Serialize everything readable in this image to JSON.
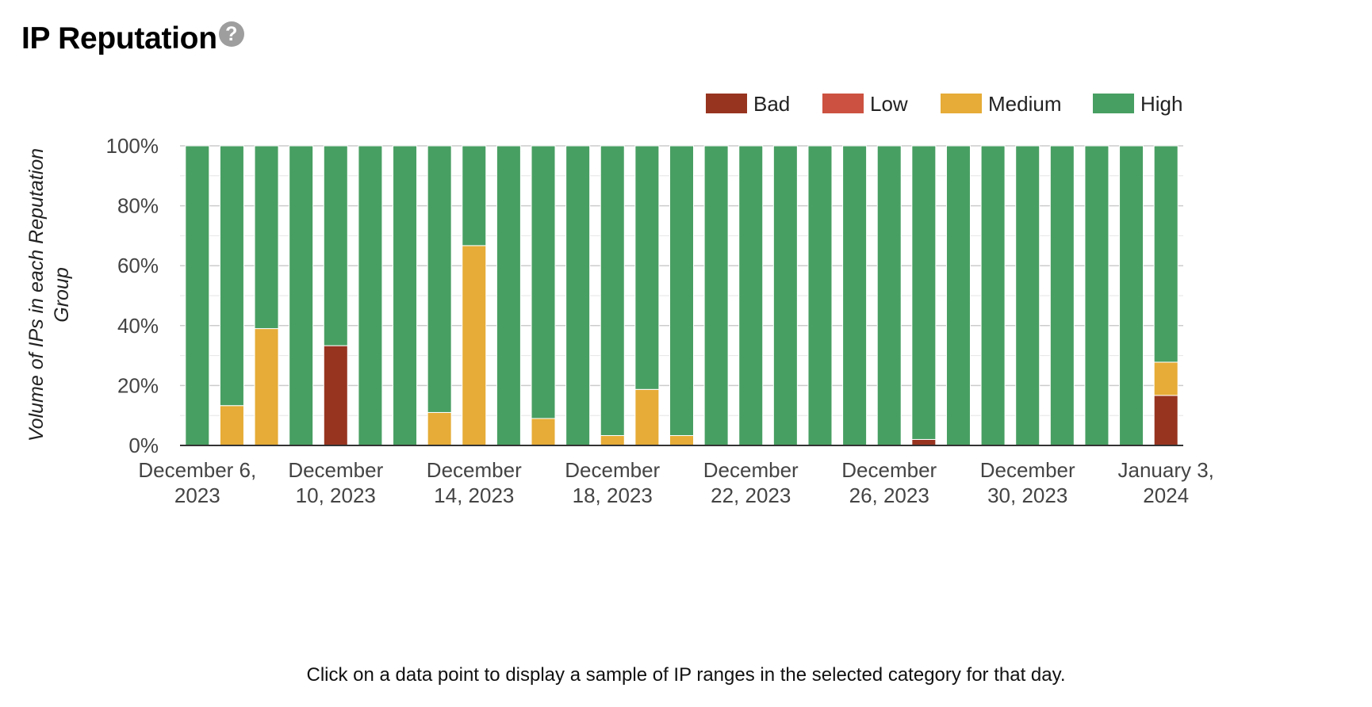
{
  "page": {
    "title": "IP Reputation",
    "help_icon": "question-circle-icon",
    "help_glyph": "?",
    "footer_note": "Click on a data point to display a sample of IP ranges in the selected category for that day."
  },
  "chart_data": {
    "type": "bar",
    "stacked": true,
    "ylabel_lines": [
      "Volume of IPs in each Reputation",
      "Group"
    ],
    "ylim": [
      0,
      100
    ],
    "y_ticks": [
      "0%",
      "20%",
      "40%",
      "60%",
      "80%",
      "100%"
    ],
    "grid": true,
    "legend_position": "top-right",
    "x_tick_labels": [
      [
        "December 6,",
        "2023"
      ],
      [
        "December",
        "10, 2023"
      ],
      [
        "December",
        "14, 2023"
      ],
      [
        "December",
        "18, 2023"
      ],
      [
        "December",
        "22, 2023"
      ],
      [
        "December",
        "26, 2023"
      ],
      [
        "December",
        "30, 2023"
      ],
      [
        "January 3,",
        "2024"
      ]
    ],
    "categories": [
      "2023-12-06",
      "2023-12-07",
      "2023-12-08",
      "2023-12-09",
      "2023-12-10",
      "2023-12-11",
      "2023-12-12",
      "2023-12-13",
      "2023-12-14",
      "2023-12-15",
      "2023-12-16",
      "2023-12-17",
      "2023-12-18",
      "2023-12-19",
      "2023-12-20",
      "2023-12-21",
      "2023-12-22",
      "2023-12-23",
      "2023-12-24",
      "2023-12-25",
      "2023-12-26",
      "2023-12-27",
      "2023-12-28",
      "2023-12-29",
      "2023-12-30",
      "2023-12-31",
      "2024-01-01",
      "2024-01-02",
      "2024-01-03"
    ],
    "series": [
      {
        "name": "Bad",
        "color": "#973420",
        "values": [
          0,
          0,
          0,
          0,
          33.3,
          0,
          0,
          0,
          0,
          0,
          0,
          0,
          0,
          0,
          0,
          0,
          0,
          0,
          0,
          0,
          0,
          2,
          0,
          0,
          0,
          0,
          0,
          0,
          16.7
        ]
      },
      {
        "name": "Low",
        "color": "#cc5140",
        "values": [
          0,
          0,
          0,
          0,
          0,
          0,
          0,
          0,
          0,
          0,
          0,
          0,
          0,
          0,
          0,
          0,
          0,
          0,
          0,
          0,
          0,
          0,
          0,
          0,
          0,
          0,
          0,
          0,
          0
        ]
      },
      {
        "name": "Medium",
        "color": "#e6ac37",
        "values": [
          0,
          13.3,
          39,
          0,
          0,
          0,
          0,
          11,
          66.7,
          0,
          9,
          0,
          3.3,
          18.7,
          3.3,
          0,
          0,
          0,
          0,
          0,
          0,
          0,
          0,
          0,
          0,
          0,
          0,
          0,
          11.1
        ]
      },
      {
        "name": "High",
        "color": "#489f62",
        "values": [
          100,
          86.7,
          61,
          100,
          66.7,
          100,
          100,
          89,
          33.3,
          100,
          91,
          100,
          96.7,
          81.3,
          96.7,
          100,
          100,
          100,
          100,
          100,
          100,
          98,
          100,
          100,
          100,
          100,
          100,
          100,
          72.2
        ]
      }
    ],
    "grid_color": "#cccccc",
    "axis_color": "#333333"
  }
}
